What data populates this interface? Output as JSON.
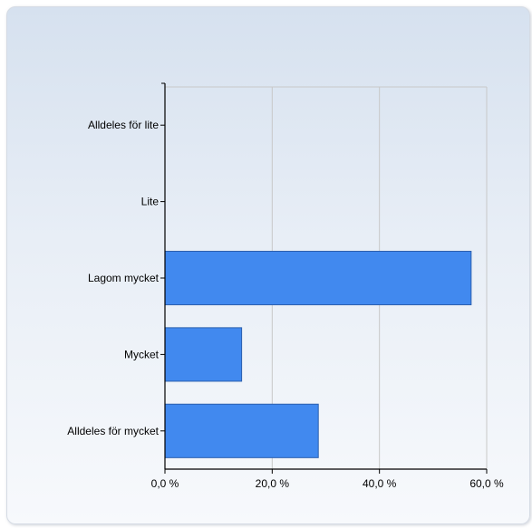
{
  "chart_data": {
    "type": "bar",
    "orientation": "horizontal",
    "title": "",
    "xlabel": "",
    "ylabel": "",
    "categories": [
      "Alldeles för lite",
      "Lite",
      "Lagom mycket",
      "Mycket",
      "Alldeles för mycket"
    ],
    "values": [
      0.0,
      0.0,
      57.1,
      14.3,
      28.6
    ],
    "xlim": [
      0,
      60
    ],
    "x_ticks": [
      0,
      20,
      40,
      60
    ],
    "x_tick_labels": [
      "0,0 %",
      "20,0 %",
      "40,0 %",
      "60,0 %"
    ],
    "grid": true,
    "legend": "none",
    "bar_color": "#4189ef",
    "bar_edge_color": "#2b5fae"
  }
}
